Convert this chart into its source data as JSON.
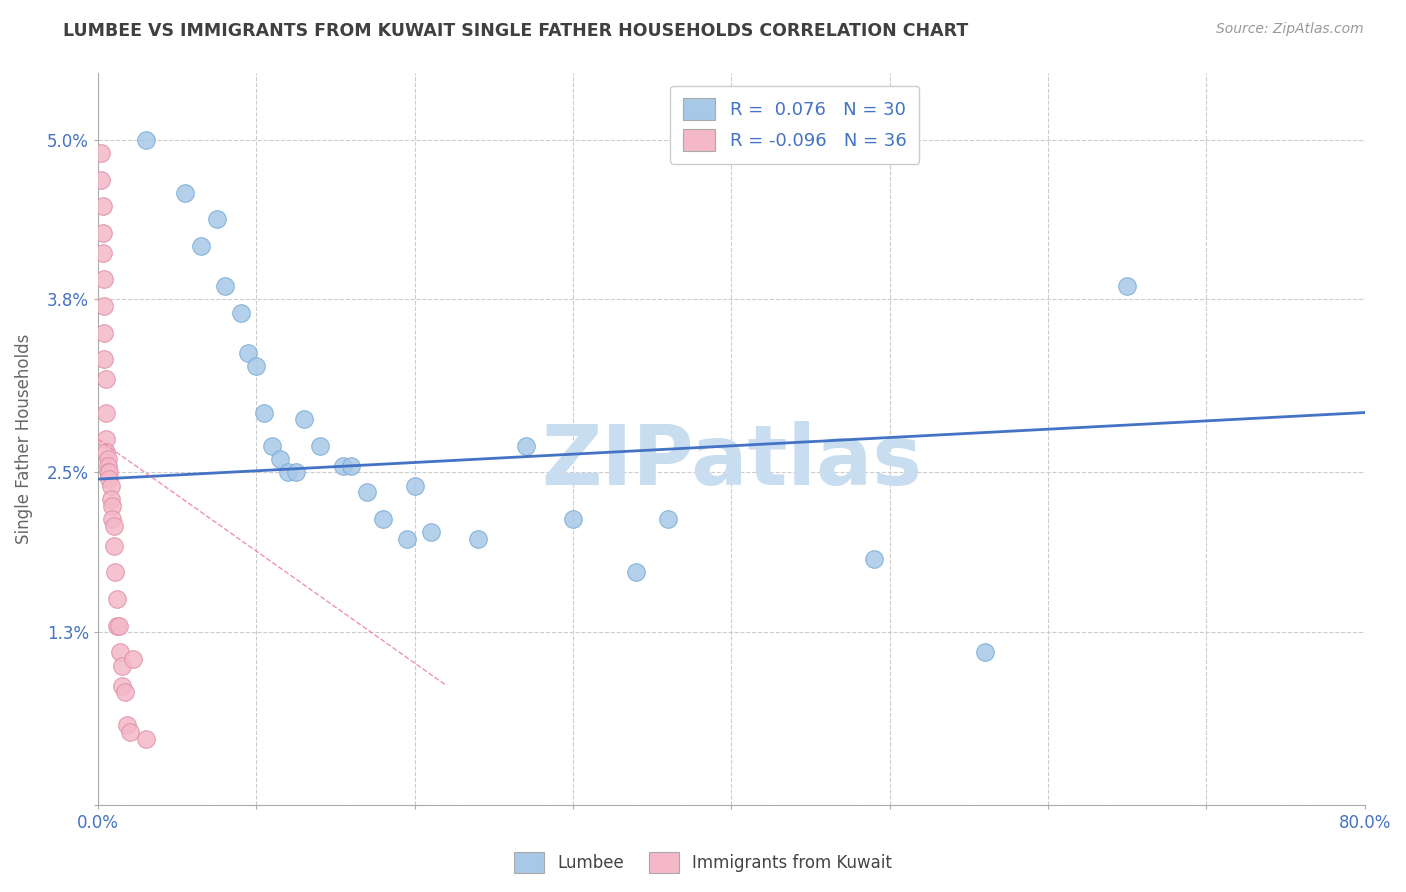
{
  "title": "LUMBEE VS IMMIGRANTS FROM KUWAIT SINGLE FATHER HOUSEHOLDS CORRELATION CHART",
  "source_text": "Source: ZipAtlas.com",
  "ylabel": "Single Father Households",
  "legend_lumbee": "Lumbee",
  "legend_kuwait": "Immigrants from Kuwait",
  "r_lumbee": 0.076,
  "n_lumbee": 30,
  "r_kuwait": -0.096,
  "n_kuwait": 36,
  "xlim": [
    0.0,
    0.8
  ],
  "ylim": [
    0.0,
    0.055
  ],
  "xticks": [
    0.0,
    0.1,
    0.2,
    0.3,
    0.4,
    0.5,
    0.6,
    0.7,
    0.8
  ],
  "xticklabels": [
    "0.0%",
    "",
    "",
    "",
    "",
    "",
    "",
    "",
    "80.0%"
  ],
  "yticks": [
    0.0,
    0.013,
    0.025,
    0.038,
    0.05
  ],
  "yticklabels": [
    "",
    "1.3%",
    "2.5%",
    "3.8%",
    "5.0%"
  ],
  "blue_scatter_x": [
    0.03,
    0.055,
    0.065,
    0.075,
    0.08,
    0.09,
    0.095,
    0.1,
    0.105,
    0.11,
    0.115,
    0.12,
    0.125,
    0.13,
    0.14,
    0.155,
    0.16,
    0.17,
    0.18,
    0.195,
    0.2,
    0.21,
    0.24,
    0.27,
    0.3,
    0.34,
    0.36,
    0.49,
    0.56,
    0.65
  ],
  "blue_scatter_y": [
    0.05,
    0.046,
    0.042,
    0.044,
    0.039,
    0.037,
    0.034,
    0.033,
    0.0295,
    0.027,
    0.026,
    0.025,
    0.025,
    0.029,
    0.027,
    0.0255,
    0.0255,
    0.0235,
    0.0215,
    0.02,
    0.024,
    0.0205,
    0.02,
    0.027,
    0.0215,
    0.0175,
    0.0215,
    0.0185,
    0.0115,
    0.039
  ],
  "pink_scatter_x": [
    0.002,
    0.002,
    0.003,
    0.003,
    0.003,
    0.004,
    0.004,
    0.004,
    0.004,
    0.005,
    0.005,
    0.005,
    0.005,
    0.006,
    0.006,
    0.006,
    0.007,
    0.007,
    0.008,
    0.008,
    0.009,
    0.009,
    0.01,
    0.01,
    0.011,
    0.012,
    0.012,
    0.013,
    0.014,
    0.015,
    0.015,
    0.017,
    0.018,
    0.02,
    0.022,
    0.03
  ],
  "pink_scatter_y": [
    0.049,
    0.047,
    0.045,
    0.043,
    0.0415,
    0.0395,
    0.0375,
    0.0355,
    0.0335,
    0.032,
    0.0295,
    0.0275,
    0.0265,
    0.026,
    0.0255,
    0.025,
    0.025,
    0.0245,
    0.024,
    0.023,
    0.0225,
    0.0215,
    0.021,
    0.0195,
    0.0175,
    0.0155,
    0.0135,
    0.0135,
    0.0115,
    0.0105,
    0.009,
    0.0085,
    0.006,
    0.0055,
    0.011,
    0.005
  ],
  "blue_line_x": [
    0.0,
    0.8
  ],
  "blue_line_y": [
    0.0245,
    0.0295
  ],
  "pink_line_x": [
    0.0,
    0.22
  ],
  "pink_line_y": [
    0.0275,
    0.009
  ],
  "bg_color": "#ffffff",
  "grid_color": "#cccccc",
  "blue_color": "#a8c8e8",
  "blue_dot_edge": "#7badd4",
  "blue_line_color": "#4472c4",
  "pink_color": "#f4b8c8",
  "pink_dot_edge": "#e090a8",
  "pink_line_color": "#e878a0",
  "watermark_color": "#c8ddf0",
  "title_color": "#404040",
  "axis_label_color": "#666666",
  "tick_label_color": "#4472c4",
  "source_color": "#999999",
  "legend_text_color": "#4472c4"
}
